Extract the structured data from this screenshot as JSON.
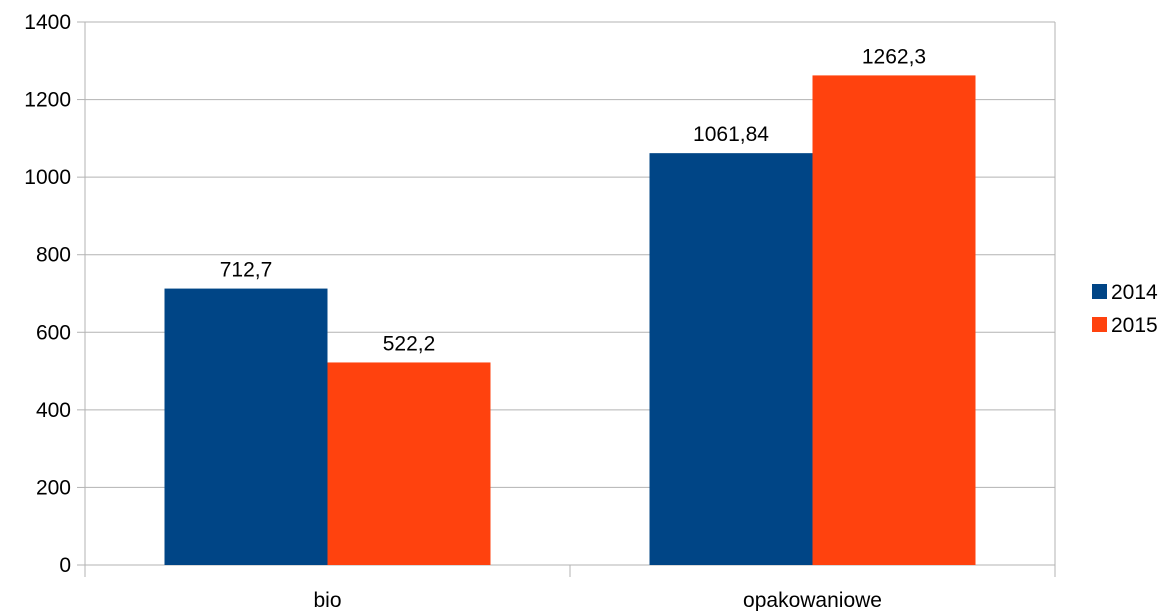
{
  "chart_data": {
    "type": "bar",
    "title": "",
    "xlabel": "",
    "ylabel": "",
    "categories": [
      "bio",
      "opakowaniowe"
    ],
    "series": [
      {
        "name": "2014",
        "values": [
          712.7,
          1061.84
        ],
        "labels": [
          "712,7",
          "1061,84"
        ],
        "color": "#004586"
      },
      {
        "name": "2015",
        "values": [
          522.2,
          1262.3
        ],
        "labels": [
          "522,2",
          "1262,3"
        ],
        "color": "#ff420e"
      }
    ],
    "ylim": [
      0,
      1400
    ],
    "yticks": [
      0,
      200,
      400,
      600,
      800,
      1000,
      1200,
      1400
    ],
    "grid": true,
    "legend_position": "right"
  }
}
